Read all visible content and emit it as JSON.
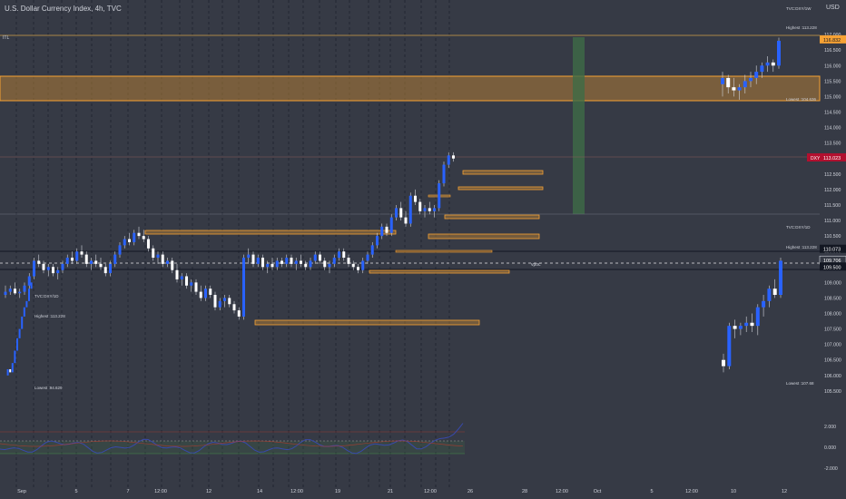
{
  "header": {
    "title": "U.S. Dollar Currency Index, 4h, TVC",
    "currency": "USD"
  },
  "colors": {
    "bg": "#363a45",
    "up": "#2962ff",
    "down": "#ffffff",
    "zone": "#f7a234",
    "zone_fill": "#b07b36",
    "green_zone": "#3f6b46",
    "axis_text": "#d1d4dc",
    "dxy_badge": "#b2102f",
    "dark_badge": "#131722"
  },
  "chart_data": {
    "type": "candlestick",
    "title": "U.S. Dollar Currency Index, 4h, TVC",
    "ylim": [
      105.35,
      117.15
    ],
    "y_ticks": [
      "117.000",
      "116.500",
      "116.000",
      "115.500",
      "115.000",
      "114.500",
      "114.000",
      "113.500",
      "113.000",
      "112.500",
      "112.000",
      "111.500",
      "111.000",
      "110.500",
      "110.000",
      "109.500",
      "109.000",
      "108.500",
      "108.000",
      "107.500",
      "107.000",
      "106.500",
      "106.000",
      "105.500"
    ],
    "x_ticks": [
      "Sep",
      "5",
      "7",
      "12:00",
      "12",
      "14",
      "12:00",
      "19",
      "21",
      "12:00",
      "26",
      "28",
      "12:00",
      "Oct",
      "5",
      "12:00",
      "10",
      "12"
    ],
    "price_labels": [
      {
        "text": "116.832",
        "style": "orange"
      },
      {
        "text": "113.023",
        "style": "red"
      },
      {
        "text": "110.073",
        "style": "dark"
      },
      {
        "text": "109.706",
        "style": "dashed"
      },
      {
        "text": "109.500",
        "style": "dark"
      }
    ],
    "annotations": {
      "itl": "ITL",
      "dxy": "DXY",
      "vpoc": "vpoc",
      "tvc_1w": "TVC:DXY/1W",
      "tvc_1d": "TVC:DXY/1D",
      "tvc_1d_small": "TVC:DXY/1D",
      "highest_1w": "Highest :113.228",
      "lowest_1w": "Lowest :104.636",
      "highest_1d": "Highest :113.228",
      "lowest_1d": "Lowest :107.68",
      "highest_small": "Highest :113.228",
      "lowest_small": "Lowest :94.629"
    },
    "oscillator": {
      "ticks": [
        "2.000",
        "0.000",
        "-2.000"
      ]
    },
    "main_candles": [
      [
        108.6,
        108.9,
        108.5,
        108.7
      ],
      [
        108.7,
        108.9,
        108.6,
        108.8
      ],
      [
        108.8,
        109.0,
        108.6,
        108.65
      ],
      [
        108.65,
        108.8,
        108.5,
        108.7
      ],
      [
        108.7,
        109.0,
        108.6,
        108.9
      ],
      [
        108.9,
        109.3,
        108.8,
        109.2
      ],
      [
        109.2,
        109.8,
        109.1,
        109.7
      ],
      [
        109.7,
        109.9,
        109.5,
        109.6
      ],
      [
        109.6,
        109.7,
        109.3,
        109.4
      ],
      [
        109.4,
        109.6,
        109.2,
        109.5
      ],
      [
        109.5,
        109.6,
        109.2,
        109.3
      ],
      [
        109.3,
        109.5,
        109.1,
        109.4
      ],
      [
        109.4,
        109.7,
        109.3,
        109.6
      ],
      [
        109.6,
        109.9,
        109.5,
        109.8
      ],
      [
        109.8,
        110.0,
        109.6,
        109.7
      ],
      [
        109.7,
        110.1,
        109.6,
        110.0
      ],
      [
        110.0,
        110.2,
        109.8,
        109.9
      ],
      [
        109.9,
        110.0,
        109.5,
        109.6
      ],
      [
        109.6,
        109.8,
        109.4,
        109.7
      ],
      [
        109.7,
        109.9,
        109.5,
        109.6
      ],
      [
        109.6,
        109.8,
        109.4,
        109.5
      ],
      [
        109.5,
        109.6,
        109.2,
        109.3
      ],
      [
        109.3,
        109.7,
        109.2,
        109.6
      ],
      [
        109.6,
        110.0,
        109.5,
        109.9
      ],
      [
        109.9,
        110.3,
        109.8,
        110.2
      ],
      [
        110.2,
        110.5,
        110.1,
        110.4
      ],
      [
        110.4,
        110.6,
        110.2,
        110.3
      ],
      [
        110.3,
        110.7,
        110.2,
        110.6
      ],
      [
        110.6,
        110.8,
        110.4,
        110.5
      ],
      [
        110.5,
        110.7,
        110.3,
        110.4
      ],
      [
        110.4,
        110.5,
        110.0,
        110.1
      ],
      [
        110.1,
        110.2,
        109.7,
        109.8
      ],
      [
        109.8,
        110.0,
        109.6,
        109.9
      ],
      [
        109.9,
        110.0,
        109.5,
        109.6
      ],
      [
        109.6,
        109.8,
        109.5,
        109.7
      ],
      [
        109.7,
        109.8,
        109.3,
        109.4
      ],
      [
        109.4,
        109.6,
        109.0,
        109.1
      ],
      [
        109.1,
        109.3,
        108.9,
        109.2
      ],
      [
        109.2,
        109.3,
        108.8,
        108.9
      ],
      [
        108.9,
        109.1,
        108.7,
        109.0
      ],
      [
        109.0,
        109.1,
        108.6,
        108.7
      ],
      [
        108.7,
        108.9,
        108.4,
        108.5
      ],
      [
        108.5,
        108.9,
        108.4,
        108.8
      ],
      [
        108.8,
        108.9,
        108.5,
        108.6
      ],
      [
        108.6,
        108.7,
        108.1,
        108.2
      ],
      [
        108.2,
        108.5,
        108.1,
        108.4
      ],
      [
        108.4,
        108.6,
        108.2,
        108.5
      ],
      [
        108.5,
        108.6,
        108.2,
        108.3
      ],
      [
        108.3,
        108.4,
        108.0,
        108.1
      ],
      [
        108.1,
        108.2,
        107.8,
        107.9
      ],
      [
        107.9,
        109.9,
        107.8,
        109.8
      ],
      [
        109.8,
        110.1,
        109.6,
        109.9
      ],
      [
        109.9,
        110.0,
        109.5,
        109.6
      ],
      [
        109.6,
        109.9,
        109.5,
        109.8
      ],
      [
        109.8,
        109.9,
        109.4,
        109.5
      ],
      [
        109.5,
        109.7,
        109.3,
        109.6
      ],
      [
        109.6,
        109.8,
        109.4,
        109.5
      ],
      [
        109.5,
        109.8,
        109.4,
        109.7
      ],
      [
        109.7,
        109.8,
        109.5,
        109.6
      ],
      [
        109.6,
        109.9,
        109.5,
        109.8
      ],
      [
        109.8,
        109.9,
        109.5,
        109.6
      ],
      [
        109.6,
        109.8,
        109.4,
        109.7
      ],
      [
        109.7,
        109.9,
        109.5,
        109.6
      ],
      [
        109.6,
        109.7,
        109.4,
        109.5
      ],
      [
        109.5,
        109.8,
        109.4,
        109.7
      ],
      [
        109.7,
        110.0,
        109.6,
        109.9
      ],
      [
        109.9,
        110.0,
        109.6,
        109.7
      ],
      [
        109.7,
        109.8,
        109.4,
        109.5
      ],
      [
        109.5,
        109.7,
        109.3,
        109.6
      ],
      [
        109.6,
        109.9,
        109.5,
        109.8
      ],
      [
        109.8,
        110.1,
        109.7,
        110.0
      ],
      [
        110.0,
        110.1,
        109.7,
        109.8
      ],
      [
        109.8,
        109.9,
        109.5,
        109.6
      ],
      [
        109.6,
        109.7,
        109.4,
        109.5
      ],
      [
        109.5,
        109.6,
        109.3,
        109.4
      ],
      [
        109.4,
        109.8,
        109.3,
        109.7
      ],
      [
        109.7,
        110.0,
        109.6,
        109.9
      ],
      [
        109.9,
        110.3,
        109.8,
        110.2
      ],
      [
        110.2,
        110.6,
        110.1,
        110.5
      ],
      [
        110.5,
        110.9,
        110.4,
        110.8
      ],
      [
        110.8,
        110.9,
        110.5,
        110.6
      ],
      [
        110.6,
        111.2,
        110.5,
        111.1
      ],
      [
        111.1,
        111.5,
        111.0,
        111.4
      ],
      [
        111.4,
        111.6,
        111.0,
        111.1
      ],
      [
        111.1,
        111.3,
        110.8,
        110.9
      ],
      [
        110.9,
        111.9,
        110.8,
        111.8
      ],
      [
        111.8,
        112.0,
        111.5,
        111.6
      ],
      [
        111.6,
        111.7,
        111.2,
        111.3
      ],
      [
        111.3,
        111.5,
        111.1,
        111.4
      ],
      [
        111.4,
        111.6,
        111.2,
        111.3
      ],
      [
        111.3,
        111.5,
        111.1,
        111.4
      ],
      [
        111.4,
        112.3,
        111.3,
        112.2
      ],
      [
        112.2,
        112.9,
        112.1,
        112.8
      ],
      [
        112.8,
        113.2,
        112.7,
        113.1
      ],
      [
        113.1,
        113.2,
        112.9,
        113.0
      ]
    ],
    "weekly_candles": [
      [
        115.4,
        115.8,
        115.0,
        115.6
      ],
      [
        115.6,
        115.7,
        115.1,
        115.3
      ],
      [
        115.3,
        115.6,
        115.0,
        115.2
      ],
      [
        115.2,
        115.4,
        114.9,
        115.3
      ],
      [
        115.3,
        115.7,
        115.1,
        115.5
      ],
      [
        115.5,
        115.8,
        115.3,
        115.6
      ],
      [
        115.6,
        116.0,
        115.4,
        115.8
      ],
      [
        115.8,
        116.1,
        115.6,
        116.0
      ],
      [
        116.0,
        116.3,
        115.8,
        116.1
      ],
      [
        116.1,
        116.2,
        115.8,
        116.0
      ],
      [
        116.0,
        116.9,
        115.9,
        116.8
      ]
    ],
    "daily_candles": [
      [
        106.5,
        106.7,
        106.1,
        106.3
      ],
      [
        106.3,
        107.7,
        106.2,
        107.6
      ],
      [
        107.6,
        107.8,
        107.2,
        107.5
      ],
      [
        107.5,
        107.7,
        107.3,
        107.6
      ],
      [
        107.6,
        107.9,
        107.4,
        107.7
      ],
      [
        107.7,
        108.0,
        107.4,
        107.6
      ],
      [
        107.6,
        108.3,
        107.3,
        108.2
      ],
      [
        108.2,
        108.6,
        107.9,
        108.4
      ],
      [
        108.4,
        108.9,
        108.2,
        108.8
      ],
      [
        108.8,
        109.1,
        108.5,
        108.6
      ],
      [
        108.6,
        109.8,
        108.5,
        109.7
      ]
    ],
    "small_candles": [
      106.0,
      106.2,
      106.1,
      106.4,
      106.8,
      107.2,
      107.5,
      107.9,
      108.2,
      108.4,
      108.8,
      109.0
    ]
  }
}
